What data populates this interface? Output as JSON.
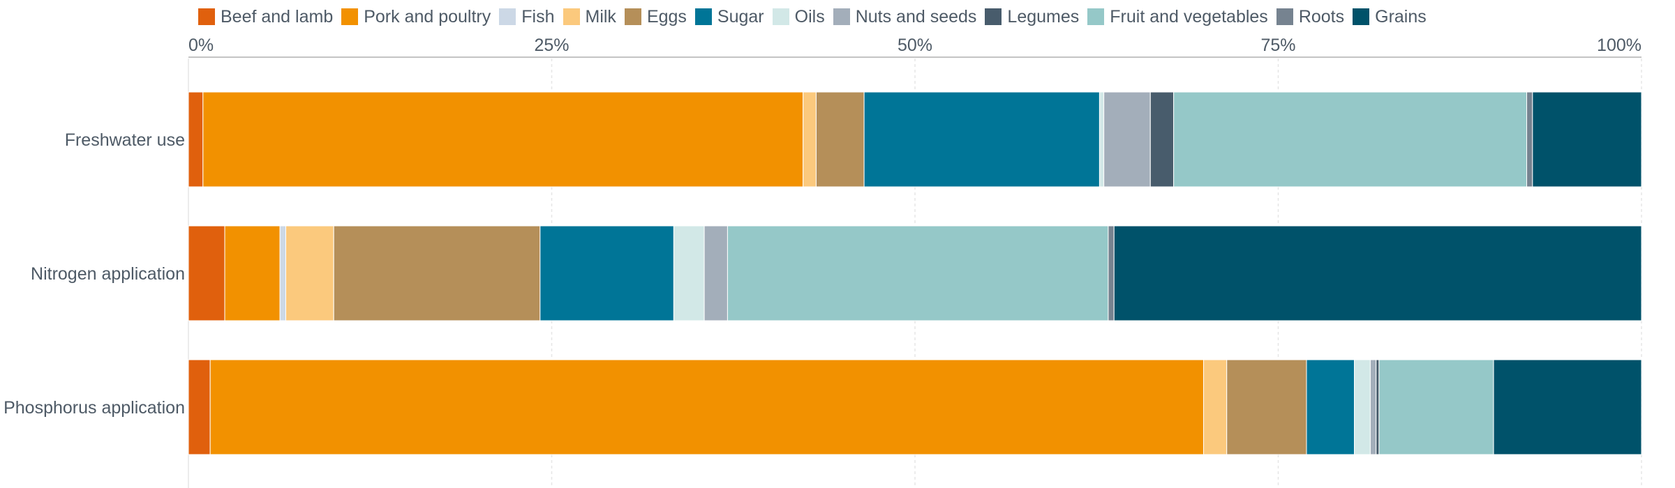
{
  "chart_data": {
    "type": "bar",
    "orientation": "horizontal",
    "stacked": true,
    "normalized": true,
    "categories": [
      "Freshwater use",
      "Nitrogen application",
      "Phosphorus application"
    ],
    "xlim": [
      0,
      100
    ],
    "xticks": [
      0,
      25,
      50,
      75,
      100
    ],
    "xtick_labels": [
      "0%",
      "25%",
      "50%",
      "75%",
      "100%"
    ],
    "grid": true,
    "legend_position": "top",
    "series": [
      {
        "name": "Beef and lamb",
        "color": "#e0600d",
        "values": [
          1.0,
          2.5,
          1.5
        ]
      },
      {
        "name": "Pork and poultry",
        "color": "#f29100",
        "values": [
          41.3,
          3.8,
          68.5
        ]
      },
      {
        "name": "Fish",
        "color": "#ccd8e6",
        "values": [
          0.0,
          0.4,
          0.0
        ]
      },
      {
        "name": "Milk",
        "color": "#fbc97d",
        "values": [
          0.9,
          3.3,
          1.6
        ]
      },
      {
        "name": "Eggs",
        "color": "#b58f59",
        "values": [
          3.3,
          14.2,
          5.5
        ]
      },
      {
        "name": "Sugar",
        "color": "#007597",
        "values": [
          16.2,
          9.2,
          3.3
        ]
      },
      {
        "name": "Oils",
        "color": "#d2e8e7",
        "values": [
          0.3,
          2.1,
          1.1
        ]
      },
      {
        "name": "Nuts and seeds",
        "color": "#a3aeba",
        "values": [
          3.2,
          1.6,
          0.4
        ]
      },
      {
        "name": "Legumes",
        "color": "#485c6c",
        "values": [
          1.6,
          0.0,
          0.2
        ]
      },
      {
        "name": "Fruit and vegetables",
        "color": "#95c8c8",
        "values": [
          24.3,
          26.2,
          7.9
        ]
      },
      {
        "name": "Roots",
        "color": "#768390",
        "values": [
          0.4,
          0.4,
          0.0
        ]
      },
      {
        "name": "Grains",
        "color": "#00526a",
        "values": [
          7.5,
          36.3,
          10.2
        ]
      }
    ]
  }
}
